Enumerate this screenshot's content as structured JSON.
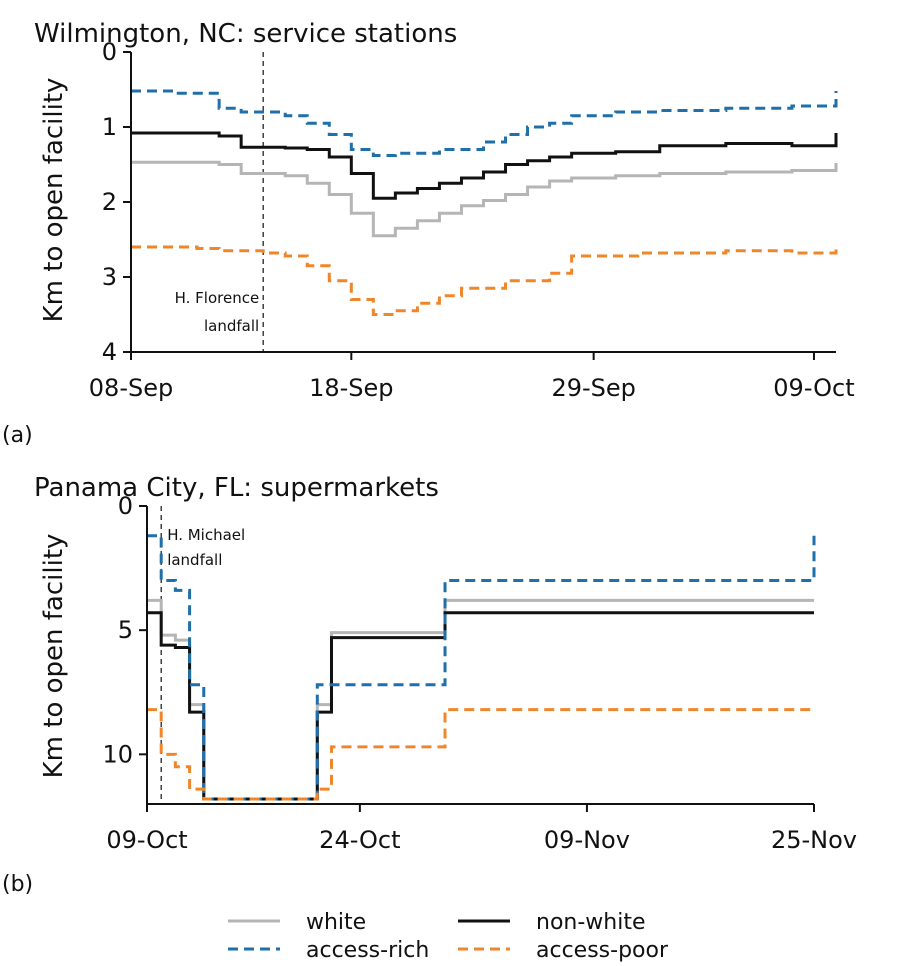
{
  "colors": {
    "white": "#b5b5b5",
    "non_white": "#111111",
    "access_rich": "#1f6fa8",
    "access_poor": "#f0862a"
  },
  "chart_data": [
    {
      "type": "line",
      "panel_label": "(a)",
      "title": "Wilmington, NC: service stations",
      "ylabel": "Km to open facility",
      "xlabel": "",
      "y_inverted": true,
      "ylim": [
        0,
        4
      ],
      "yticks": [
        0,
        1,
        2,
        3,
        4
      ],
      "ytick_labels": [
        "0",
        "1",
        "2",
        "3",
        "4"
      ],
      "xlim": [
        "2018-09-08",
        "2018-10-10"
      ],
      "xticks": [
        "2018-09-08",
        "2018-09-18",
        "2018-09-29",
        "2018-10-09"
      ],
      "xtick_labels": [
        "08-Sep",
        "18-Sep",
        "29-Sep",
        "09-Oct"
      ],
      "annotation": {
        "x": "2018-09-14",
        "lines": [
          "H. Florence",
          "landfall"
        ]
      },
      "series": [
        {
          "name": "white",
          "style": "solid",
          "x": [
            "2018-09-08",
            "2018-09-12",
            "2018-09-13",
            "2018-09-15",
            "2018-09-16",
            "2018-09-17",
            "2018-09-18",
            "2018-09-19",
            "2018-09-20",
            "2018-09-21",
            "2018-09-22",
            "2018-09-23",
            "2018-09-24",
            "2018-09-25",
            "2018-09-26",
            "2018-09-27",
            "2018-09-28",
            "2018-09-30",
            "2018-10-02",
            "2018-10-05",
            "2018-10-08",
            "2018-10-10"
          ],
          "y": [
            1.47,
            1.5,
            1.62,
            1.65,
            1.75,
            1.9,
            2.15,
            2.45,
            2.35,
            2.25,
            2.15,
            2.05,
            1.98,
            1.9,
            1.8,
            1.72,
            1.68,
            1.65,
            1.62,
            1.6,
            1.58,
            1.48
          ]
        },
        {
          "name": "non-white",
          "style": "solid",
          "x": [
            "2018-09-08",
            "2018-09-12",
            "2018-09-13",
            "2018-09-15",
            "2018-09-16",
            "2018-09-17",
            "2018-09-18",
            "2018-09-19",
            "2018-09-20",
            "2018-09-21",
            "2018-09-22",
            "2018-09-23",
            "2018-09-24",
            "2018-09-25",
            "2018-09-26",
            "2018-09-27",
            "2018-09-28",
            "2018-09-30",
            "2018-10-02",
            "2018-10-05",
            "2018-10-08",
            "2018-10-10"
          ],
          "y": [
            1.08,
            1.12,
            1.27,
            1.28,
            1.3,
            1.4,
            1.62,
            1.95,
            1.88,
            1.82,
            1.75,
            1.68,
            1.6,
            1.5,
            1.45,
            1.4,
            1.35,
            1.33,
            1.25,
            1.22,
            1.25,
            1.08
          ]
        },
        {
          "name": "access-rich",
          "style": "dashed",
          "x": [
            "2018-09-08",
            "2018-09-10",
            "2018-09-12",
            "2018-09-13",
            "2018-09-15",
            "2018-09-16",
            "2018-09-17",
            "2018-09-18",
            "2018-09-19",
            "2018-09-20",
            "2018-09-22",
            "2018-09-24",
            "2018-09-25",
            "2018-09-26",
            "2018-09-27",
            "2018-09-28",
            "2018-09-30",
            "2018-10-02",
            "2018-10-05",
            "2018-10-08",
            "2018-10-10"
          ],
          "y": [
            0.52,
            0.55,
            0.75,
            0.8,
            0.85,
            0.95,
            1.1,
            1.3,
            1.38,
            1.35,
            1.3,
            1.2,
            1.1,
            1.0,
            0.95,
            0.85,
            0.8,
            0.78,
            0.75,
            0.72,
            0.52
          ]
        },
        {
          "name": "access-poor",
          "style": "dashed",
          "x": [
            "2018-09-08",
            "2018-09-11",
            "2018-09-12",
            "2018-09-14",
            "2018-09-15",
            "2018-09-16",
            "2018-09-17",
            "2018-09-18",
            "2018-09-19",
            "2018-09-20",
            "2018-09-21",
            "2018-09-22",
            "2018-09-23",
            "2018-09-25",
            "2018-09-27",
            "2018-09-28",
            "2018-10-01",
            "2018-10-05",
            "2018-10-08",
            "2018-10-10"
          ],
          "y": [
            2.6,
            2.62,
            2.65,
            2.68,
            2.72,
            2.85,
            3.05,
            3.3,
            3.5,
            3.45,
            3.35,
            3.25,
            3.15,
            3.05,
            2.95,
            2.72,
            2.68,
            2.65,
            2.68,
            2.6
          ]
        }
      ]
    },
    {
      "type": "line",
      "panel_label": "(b)",
      "title": "Panama City, FL: supermarkets",
      "ylabel": "Km to open facility",
      "xlabel": "",
      "y_inverted": true,
      "ylim": [
        0,
        12
      ],
      "yticks": [
        0,
        5,
        10
      ],
      "ytick_labels": [
        "0",
        "5",
        "10"
      ],
      "xlim": [
        "2018-10-09",
        "2018-11-25"
      ],
      "xticks": [
        "2018-10-09",
        "2018-10-24",
        "2018-11-09",
        "2018-11-25"
      ],
      "xtick_labels": [
        "09-Oct",
        "24-Oct",
        "09-Nov",
        "25-Nov"
      ],
      "annotation": {
        "x": "2018-10-10",
        "lines": [
          "H. Michael",
          "landfall"
        ]
      },
      "series": [
        {
          "name": "white",
          "style": "solid",
          "x": [
            "2018-10-09",
            "2018-10-10",
            "2018-10-11",
            "2018-10-12",
            "2018-10-13",
            "2018-10-21",
            "2018-10-22",
            "2018-10-30",
            "2018-11-25"
          ],
          "y": [
            3.8,
            5.2,
            5.4,
            8.0,
            11.8,
            8.0,
            5.1,
            3.8,
            3.8
          ]
        },
        {
          "name": "non-white",
          "style": "solid",
          "x": [
            "2018-10-09",
            "2018-10-10",
            "2018-10-11",
            "2018-10-12",
            "2018-10-13",
            "2018-10-21",
            "2018-10-22",
            "2018-10-30",
            "2018-11-25"
          ],
          "y": [
            4.3,
            5.6,
            5.7,
            8.3,
            11.8,
            8.3,
            5.3,
            4.3,
            4.3
          ]
        },
        {
          "name": "access-rich",
          "style": "dashed",
          "x": [
            "2018-10-09",
            "2018-10-10",
            "2018-10-11",
            "2018-10-12",
            "2018-10-13",
            "2018-10-21",
            "2018-10-30",
            "2018-11-25"
          ],
          "y": [
            1.2,
            3.0,
            3.4,
            7.2,
            11.8,
            7.2,
            3.0,
            1.2
          ]
        },
        {
          "name": "access-poor",
          "style": "dashed",
          "x": [
            "2018-10-09",
            "2018-10-10",
            "2018-10-11",
            "2018-10-12",
            "2018-10-13",
            "2018-10-21",
            "2018-10-22",
            "2018-10-30",
            "2018-11-25"
          ],
          "y": [
            8.2,
            10.0,
            10.5,
            11.4,
            11.8,
            11.4,
            9.7,
            8.2,
            8.2
          ]
        }
      ]
    }
  ],
  "legend": {
    "placement": "bottom-center",
    "entries": [
      {
        "label": "white",
        "series": "white"
      },
      {
        "label": "non-white",
        "series": "non-white"
      },
      {
        "label": "access-rich",
        "series": "access-rich"
      },
      {
        "label": "access-poor",
        "series": "access-poor"
      }
    ]
  }
}
